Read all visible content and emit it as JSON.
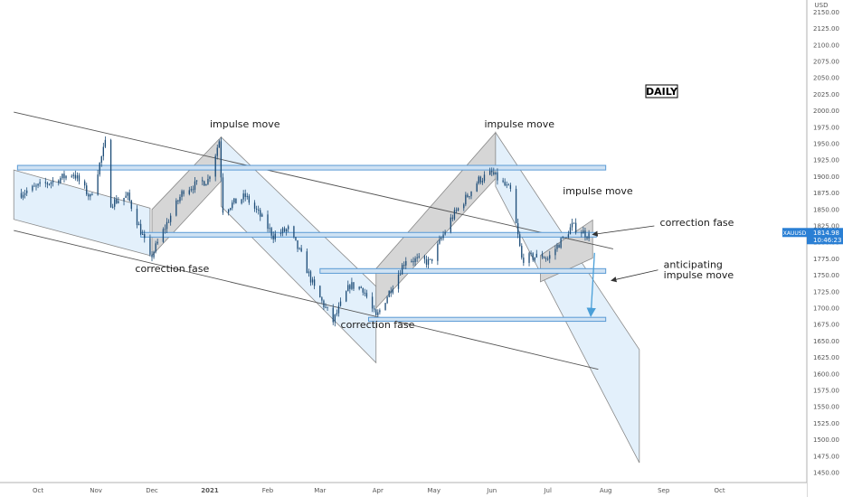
{
  "chart_data": {
    "type": "candlestick",
    "symbol": "XAUUSD",
    "currency": "USD",
    "timeframe": "DAILY",
    "last_price": "1814.98",
    "countdown": "10:46:23",
    "colors": {
      "candle": "#1f4e79",
      "zone_fill": "#cfe2f3",
      "zone_stroke": "#5b9bd5",
      "channel_fill": "#e3f0fb",
      "impulse_fill": "#d6d6d6",
      "arrow": "#4a9fd8",
      "price_tag": "#2a7fd4"
    },
    "ylim": [
      1440,
      2160
    ],
    "y_ticks": [
      "1450.00",
      "1475.00",
      "1500.00",
      "1525.00",
      "1550.00",
      "1575.00",
      "1600.00",
      "1625.00",
      "1650.00",
      "1675.00",
      "1700.00",
      "1725.00",
      "1750.00",
      "1775.00",
      "1800.00",
      "1825.00",
      "1850.00",
      "1875.00",
      "1900.00",
      "1925.00",
      "1950.00",
      "1975.00",
      "2000.00",
      "2025.00",
      "2050.00",
      "2075.00",
      "2100.00",
      "2125.00",
      "2150.00"
    ],
    "x_ticks": [
      {
        "label": "Oct",
        "date": "2020-10-01"
      },
      {
        "label": "Nov",
        "date": "2020-11-01"
      },
      {
        "label": "Dec",
        "date": "2020-12-01"
      },
      {
        "label": "2021",
        "date": "2021-01-01"
      },
      {
        "label": "Feb",
        "date": "2021-02-01"
      },
      {
        "label": "Mar",
        "date": "2021-03-01"
      },
      {
        "label": "Apr",
        "date": "2021-04-01"
      },
      {
        "label": "May",
        "date": "2021-05-01"
      },
      {
        "label": "Jun",
        "date": "2021-06-01"
      },
      {
        "label": "Jul",
        "date": "2021-07-01"
      },
      {
        "label": "Aug",
        "date": "2021-08-01"
      },
      {
        "label": "Sep",
        "date": "2021-09-01"
      },
      {
        "label": "Oct",
        "date": "2021-10-01"
      }
    ],
    "price_path": [
      [
        "2020-09-22",
        1875
      ],
      [
        "2020-10-06",
        1890
      ],
      [
        "2020-10-20",
        1905
      ],
      [
        "2020-10-29",
        1868
      ],
      [
        "2020-11-06",
        1950
      ],
      [
        "2020-11-09",
        1860
      ],
      [
        "2020-11-18",
        1870
      ],
      [
        "2020-11-26",
        1810
      ],
      [
        "2020-11-30",
        1775
      ],
      [
        "2020-12-10",
        1835
      ],
      [
        "2020-12-18",
        1880
      ],
      [
        "2020-12-31",
        1895
      ],
      [
        "2021-01-06",
        1955
      ],
      [
        "2021-01-08",
        1850
      ],
      [
        "2021-01-20",
        1870
      ],
      [
        "2021-01-28",
        1840
      ],
      [
        "2021-02-04",
        1810
      ],
      [
        "2021-02-12",
        1820
      ],
      [
        "2021-02-19",
        1780
      ],
      [
        "2021-02-26",
        1730
      ],
      [
        "2021-03-08",
        1680
      ],
      [
        "2021-03-17",
        1735
      ],
      [
        "2021-03-24",
        1730
      ],
      [
        "2021-03-31",
        1685
      ],
      [
        "2021-04-16",
        1775
      ],
      [
        "2021-04-29",
        1770
      ],
      [
        "2021-05-10",
        1835
      ],
      [
        "2021-05-25",
        1895
      ],
      [
        "2021-06-01",
        1905
      ],
      [
        "2021-06-11",
        1878
      ],
      [
        "2021-06-17",
        1775
      ],
      [
        "2021-06-28",
        1780
      ],
      [
        "2021-07-01",
        1775
      ],
      [
        "2021-07-14",
        1825
      ],
      [
        "2021-07-23",
        1810
      ]
    ],
    "zones": [
      {
        "from": "2020-09-20",
        "to": "2021-08-01",
        "low": 1910,
        "high": 1917
      },
      {
        "from": "2020-11-25",
        "to": "2021-07-27",
        "low": 1808,
        "high": 1815
      },
      {
        "from": "2021-03-01",
        "to": "2021-08-01",
        "low": 1753,
        "high": 1760
      },
      {
        "from": "2021-03-27",
        "to": "2021-08-01",
        "low": 1680,
        "high": 1686
      }
    ],
    "annotations": [
      {
        "text": "impulse move",
        "date": "2021-01-01",
        "price": 1975
      },
      {
        "text": "correction fase",
        "date": "2020-11-22",
        "price": 1755
      },
      {
        "text": "correction fase",
        "date": "2021-03-12",
        "price": 1670
      },
      {
        "text": "impulse move",
        "date": "2021-05-28",
        "price": 1975
      },
      {
        "text": "impulse move",
        "date": "2021-07-09",
        "price": 1873
      },
      {
        "text": "correction fase",
        "date": "2021-08-30",
        "price": 1825
      },
      {
        "text": "anticipating",
        "date": "2021-09-01",
        "price": 1761
      },
      {
        "text": "impulse move",
        "date": "2021-09-01",
        "price": 1745
      }
    ]
  }
}
